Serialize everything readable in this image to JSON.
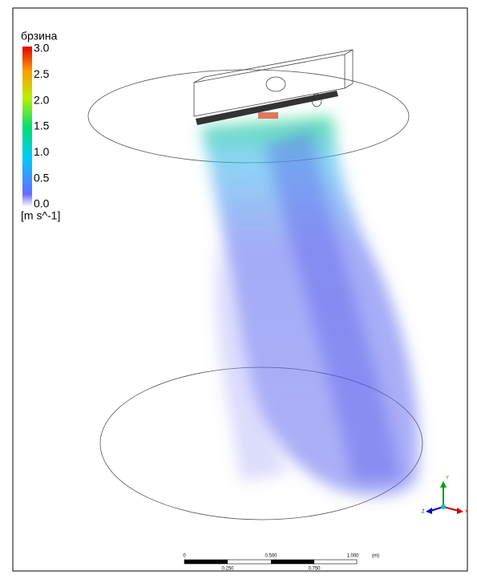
{
  "legend": {
    "title": "брзина",
    "ticks": [
      "3.0",
      "2.5",
      "2.0",
      "1.5",
      "1.0",
      "0.5",
      "0.0"
    ],
    "unit": "[m s^-1]"
  },
  "scale_bar": {
    "top_labels": [
      "0",
      "0.500",
      "1.000",
      "(m)"
    ],
    "bottom_labels": [
      "0.250",
      "0.750"
    ]
  },
  "triad": {
    "y": "Y",
    "x": "X",
    "z": "Z"
  }
}
